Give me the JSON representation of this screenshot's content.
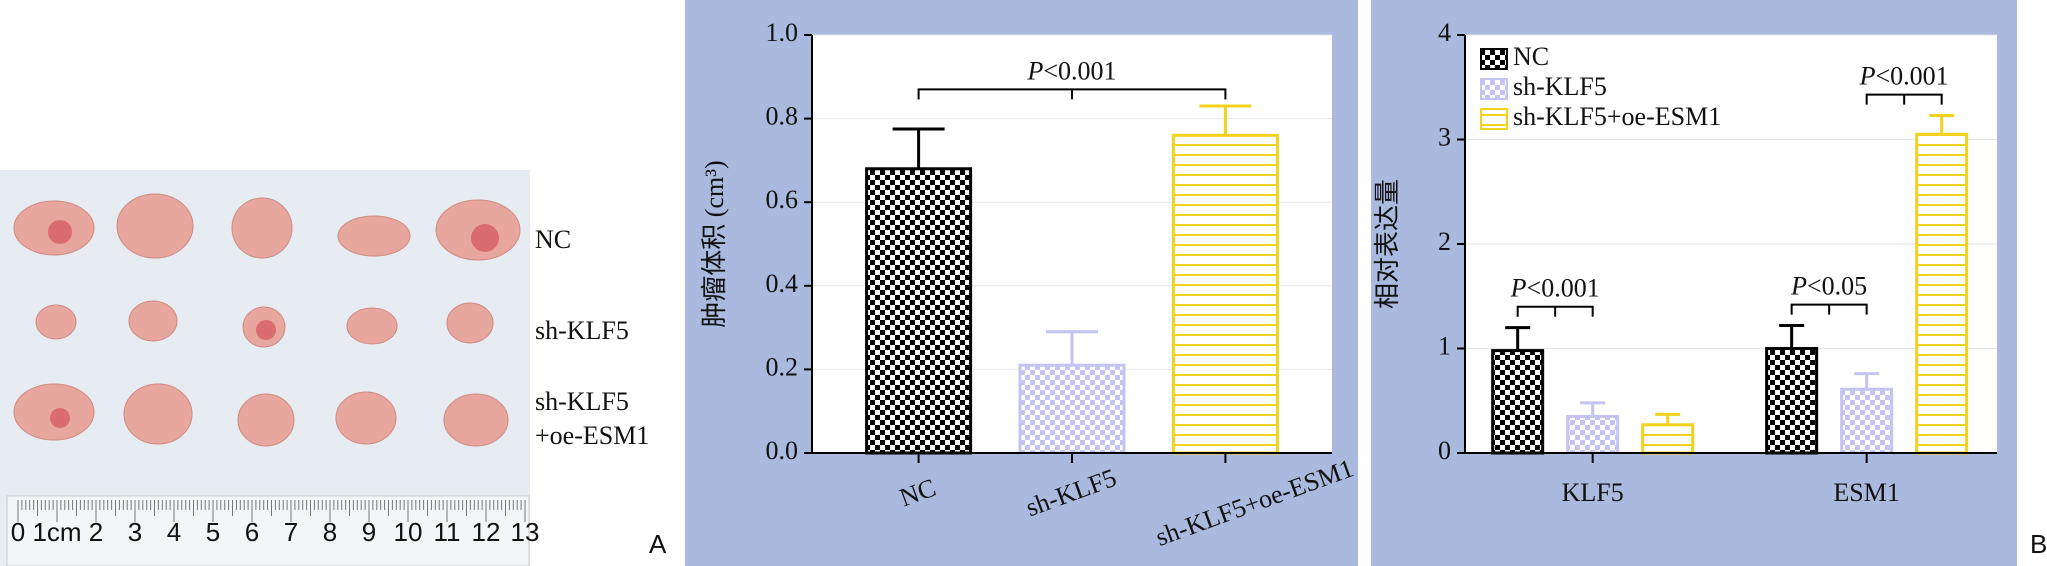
{
  "panel_a": {
    "row_labels": [
      "NC",
      "sh-KLF5",
      [
        "sh-KLF5",
        "+oe-ESM1"
      ]
    ],
    "ruler_labels": [
      "0",
      "1cm",
      "2",
      "3",
      "4",
      "5",
      "6",
      "7",
      "8",
      "9",
      "10",
      "11",
      "12",
      "13"
    ],
    "panel_label": "A"
  },
  "panel_b_label": "B",
  "chart_data": [
    {
      "type": "bar",
      "categories": [
        "NC",
        "sh-KLF5",
        "sh-KLF5+oe-ESM1"
      ],
      "values": [
        0.68,
        0.21,
        0.76
      ],
      "errors": [
        0.095,
        0.08,
        0.07
      ],
      "colors": [
        "#000000",
        "#c4c4f2",
        "#f2d21c"
      ],
      "patterns": [
        "checker",
        "checker",
        "hstripe"
      ],
      "ylabel": "肿瘤体积 (cm³)",
      "ylim": [
        0,
        1.0
      ],
      "yticks": [
        {
          "value": 0,
          "label": "0.0"
        },
        0.2,
        0.4,
        0.6,
        0.8,
        {
          "value": 1,
          "label": "1.0"
        }
      ],
      "grid": true,
      "annotations": [
        "P<0.001"
      ]
    },
    {
      "type": "grouped_bar",
      "categories": [
        "KLF5",
        "ESM1"
      ],
      "series": [
        {
          "name": "NC",
          "color": "#000000",
          "pattern": "checker",
          "values": [
            0.98,
            1.0
          ],
          "errors": [
            0.22,
            0.22
          ]
        },
        {
          "name": "sh-KLF5",
          "color": "#c4c4f2",
          "pattern": "checker",
          "values": [
            0.35,
            0.61
          ],
          "errors": [
            0.13,
            0.15
          ]
        },
        {
          "name": "sh-KLF5+oe-ESM1",
          "color": "#f2d21c",
          "pattern": "hstripe",
          "values": [
            0.27,
            3.05
          ],
          "errors": [
            0.1,
            0.18
          ]
        }
      ],
      "ylabel": "相对表达量",
      "ylim": [
        0,
        4
      ],
      "yticks": [
        0,
        1,
        2,
        3,
        4
      ],
      "grid": true,
      "legend": "upper left",
      "annotations": [
        "P<0.001",
        "P<0.05",
        "P<0.001"
      ]
    }
  ]
}
